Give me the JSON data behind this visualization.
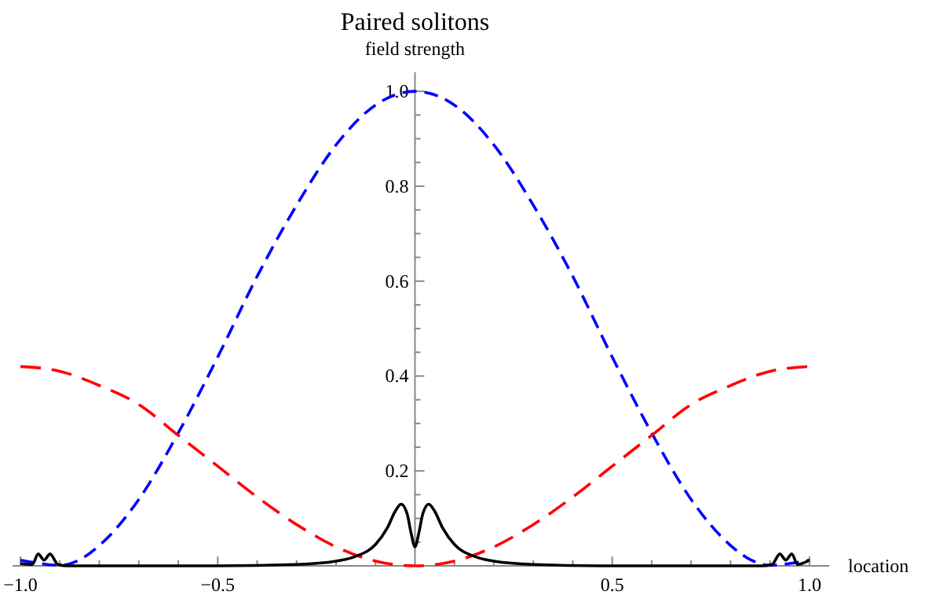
{
  "chart_data": {
    "type": "line",
    "title": "Paired solitons",
    "ylabel": "field strength",
    "xlabel": "location",
    "xlim": [
      -1.02,
      1.05
    ],
    "ylim": [
      0,
      1.04
    ],
    "xticks": [
      {
        "value": -1,
        "label": "−1.0"
      },
      {
        "value": -0.9,
        "label": null
      },
      {
        "value": -0.8,
        "label": null
      },
      {
        "value": -0.7,
        "label": null
      },
      {
        "value": -0.6,
        "label": null
      },
      {
        "value": -0.5,
        "label": "−0.5"
      },
      {
        "value": -0.4,
        "label": null
      },
      {
        "value": -0.3,
        "label": null
      },
      {
        "value": -0.2,
        "label": null
      },
      {
        "value": -0.1,
        "label": null
      },
      {
        "value": 0.1,
        "label": null
      },
      {
        "value": 0.2,
        "label": null
      },
      {
        "value": 0.3,
        "label": null
      },
      {
        "value": 0.4,
        "label": null
      },
      {
        "value": 0.5,
        "label": "0.5"
      },
      {
        "value": 0.6,
        "label": null
      },
      {
        "value": 0.7,
        "label": null
      },
      {
        "value": 0.8,
        "label": null
      },
      {
        "value": 0.9,
        "label": null
      },
      {
        "value": 1,
        "label": "1.0"
      }
    ],
    "yticks": [
      {
        "value": 0.05,
        "label": null
      },
      {
        "value": 0.1,
        "label": null
      },
      {
        "value": 0.15,
        "label": null
      },
      {
        "value": 0.2,
        "label": "0.2"
      },
      {
        "value": 0.25,
        "label": null
      },
      {
        "value": 0.3,
        "label": null
      },
      {
        "value": 0.35,
        "label": null
      },
      {
        "value": 0.4,
        "label": "0.4"
      },
      {
        "value": 0.45,
        "label": null
      },
      {
        "value": 0.5,
        "label": null
      },
      {
        "value": 0.55,
        "label": null
      },
      {
        "value": 0.6,
        "label": "0.6"
      },
      {
        "value": 0.65,
        "label": null
      },
      {
        "value": 0.7,
        "label": null
      },
      {
        "value": 0.75,
        "label": null
      },
      {
        "value": 0.8,
        "label": "0.8"
      },
      {
        "value": 0.85,
        "label": null
      },
      {
        "value": 0.9,
        "label": null
      },
      {
        "value": 0.95,
        "label": null
      },
      {
        "value": 1,
        "label": "1.0"
      }
    ],
    "grid": false,
    "series": [
      {
        "color": "#0000ff",
        "line_style": "dashed",
        "x": [
          -1,
          -0.95,
          -0.9,
          -0.85,
          -0.8,
          -0.7,
          -0.6,
          -0.5,
          -0.4,
          -0.3,
          -0.2,
          -0.1,
          0,
          0.1,
          0.2,
          0.3,
          0.4,
          0.5,
          0.6,
          0.7,
          0.8,
          0.85,
          0.9,
          0.95,
          1
        ],
        "values": [
          0.012,
          0.005,
          0.001,
          0.013,
          0.043,
          0.14,
          0.28,
          0.44,
          0.61,
          0.76,
          0.887,
          0.971,
          1,
          0.971,
          0.887,
          0.76,
          0.61,
          0.44,
          0.28,
          0.14,
          0.043,
          0.013,
          0.001,
          0.005,
          0.012
        ]
      },
      {
        "color": "#ff0000",
        "line_style": "dashed",
        "x": [
          -1,
          -0.9,
          -0.8,
          -0.7,
          -0.6,
          -0.5,
          -0.4,
          -0.3,
          -0.2,
          -0.1,
          0,
          0.1,
          0.2,
          0.3,
          0.4,
          0.5,
          0.6,
          0.7,
          0.8,
          0.9,
          1
        ],
        "values": [
          0.42,
          0.41,
          0.38,
          0.34,
          0.275,
          0.21,
          0.145,
          0.087,
          0.04,
          0.01,
          0,
          0.01,
          0.04,
          0.087,
          0.145,
          0.21,
          0.275,
          0.34,
          0.38,
          0.41,
          0.42
        ]
      },
      {
        "color": "#000000",
        "line_style": "solid",
        "x": [
          -1,
          -0.97,
          -0.955,
          -0.94,
          -0.925,
          -0.905,
          -0.88,
          -0.5,
          -0.3,
          -0.2,
          -0.15,
          -0.1,
          -0.07,
          -0.05,
          -0.035,
          -0.02,
          -0.01,
          0,
          0.01,
          0.02,
          0.035,
          0.05,
          0.07,
          0.1,
          0.15,
          0.2,
          0.3,
          0.5,
          0.88,
          0.905,
          0.925,
          0.94,
          0.955,
          0.97,
          1
        ],
        "values": [
          0.005,
          0.003,
          0.025,
          0.012,
          0.025,
          0.003,
          0,
          0,
          0.003,
          0.01,
          0.02,
          0.045,
          0.08,
          0.115,
          0.13,
          0.11,
          0.07,
          0.04,
          0.07,
          0.11,
          0.13,
          0.115,
          0.08,
          0.045,
          0.02,
          0.01,
          0.003,
          0,
          0,
          0.003,
          0.025,
          0.012,
          0.025,
          0.003,
          0.012
        ]
      }
    ]
  }
}
